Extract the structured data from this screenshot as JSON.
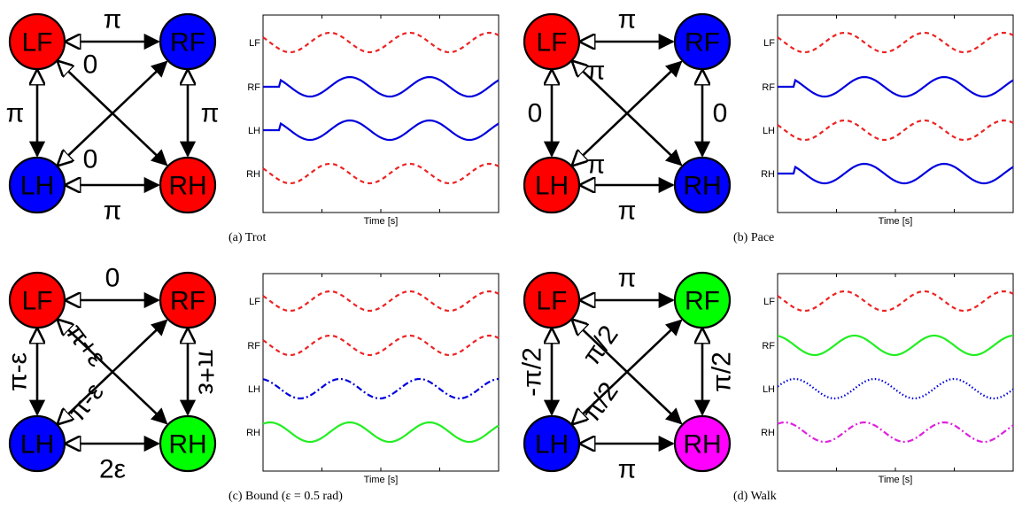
{
  "colors": {
    "red": "#ff0000",
    "blue": "#0000ff",
    "green": "#00ff00",
    "magenta": "#ff00ff",
    "trace_red": "#ee2222",
    "trace_blue": "#0000dd",
    "trace_green": "#22ee22",
    "trace_magenta": "#dd22dd"
  },
  "panels": [
    {
      "caption": "(a)  Trot",
      "nodes": {
        "LF": "red",
        "RF": "blue",
        "LH": "blue",
        "RH": "red"
      },
      "edges": {
        "top": "π",
        "bottom": "π",
        "left": "π",
        "right": "π",
        "diag_main": "0",
        "diag_anti": "0"
      },
      "labels": [
        "LF",
        "RF",
        "LH",
        "RH"
      ],
      "time_label": "Time [s]"
    },
    {
      "caption": "(b)  Pace",
      "nodes": {
        "LF": "red",
        "RF": "blue",
        "LH": "red",
        "RH": "blue"
      },
      "edges": {
        "top": "π",
        "bottom": "π",
        "left": "0",
        "right": "0",
        "diag_main": "π",
        "diag_anti": "π"
      },
      "labels": [
        "LF",
        "RF",
        "LH",
        "RH"
      ],
      "time_label": "Time [s]"
    },
    {
      "caption": "(c)  Bound (ε = 0.5 rad)",
      "nodes": {
        "LF": "red",
        "RF": "red",
        "LH": "blue",
        "RH": "green"
      },
      "edges": {
        "top": "0",
        "bottom": "2ε",
        "left": "π-ε",
        "right": "π+ε",
        "diag_main": "π+ε",
        "diag_anti": "π-ε"
      },
      "labels": [
        "LF",
        "RF",
        "LH",
        "RH"
      ],
      "time_label": "Time [s]"
    },
    {
      "caption": "(d)  Walk",
      "nodes": {
        "LF": "red",
        "RF": "green",
        "LH": "blue",
        "RH": "magenta"
      },
      "edges": {
        "top": "π",
        "bottom": "π",
        "left": "-π/2",
        "right": "π/2",
        "diag_main": "π/2",
        "diag_anti": "π/2"
      },
      "labels": [
        "LF",
        "RF",
        "LH",
        "RH"
      ],
      "time_label": "Time [s]"
    }
  ]
}
